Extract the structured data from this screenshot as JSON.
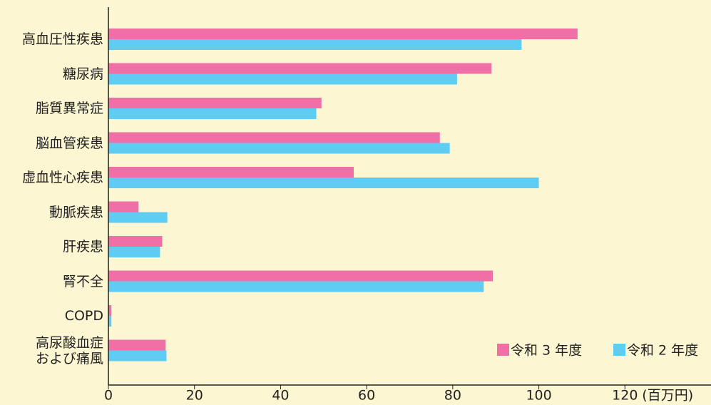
{
  "chart_data": {
    "type": "bar",
    "orientation": "horizontal",
    "categories": [
      "高血圧性疾患",
      "糖尿病",
      "脂質異常症",
      "脳血管疾患",
      "虚血性心疾患",
      "動脈疾患",
      "肝疾患",
      "腎不全",
      "COPD",
      "高尿酸血症\nおよび痛風"
    ],
    "series": [
      {
        "name": "令和 3 年度",
        "color": "#ef6fa6",
        "values": [
          109,
          89,
          49.5,
          77,
          57,
          7,
          12.5,
          89.3,
          0.7,
          13.3
        ]
      },
      {
        "name": "令和 2 年度",
        "color": "#5fcdf2",
        "values": [
          96,
          81,
          48.3,
          79.3,
          100,
          13.7,
          12,
          87.2,
          0.7,
          13.5
        ]
      }
    ],
    "xlim": [
      0,
      140
    ],
    "xticks": [
      0,
      20,
      40,
      60,
      80,
      100,
      120
    ],
    "xlabel": "(百万円)",
    "legend": "lower right"
  }
}
